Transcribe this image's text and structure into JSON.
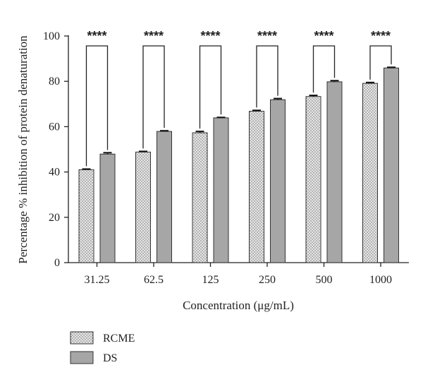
{
  "chart_data": {
    "type": "bar",
    "categories": [
      "31.25",
      "62.5",
      "125",
      "250",
      "500",
      "1000"
    ],
    "series": [
      {
        "name": "RCME",
        "values": [
          41.0,
          48.8,
          57.3,
          66.8,
          73.3,
          79.1
        ],
        "errors": [
          0.3,
          0.3,
          0.6,
          0.4,
          0.5,
          0.4
        ],
        "pattern": "dotted",
        "color": "#e6e6e6"
      },
      {
        "name": "DS",
        "values": [
          47.9,
          57.9,
          63.9,
          71.9,
          79.8,
          85.9
        ],
        "errors": [
          0.6,
          0.3,
          0.2,
          0.5,
          0.5,
          0.3
        ],
        "pattern": "solid",
        "color": "#a6a6a6"
      }
    ],
    "xlabel": "Concentration (μg/mL)",
    "ylabel": "Percentage % inhibition of protein denaturation",
    "ylim": [
      0,
      100
    ],
    "yticks": [
      0,
      20,
      40,
      60,
      80,
      100
    ],
    "significance": [
      "****",
      "****",
      "****",
      "****",
      "****",
      "****"
    ],
    "legend_position": "bottom-left",
    "grid": false
  }
}
